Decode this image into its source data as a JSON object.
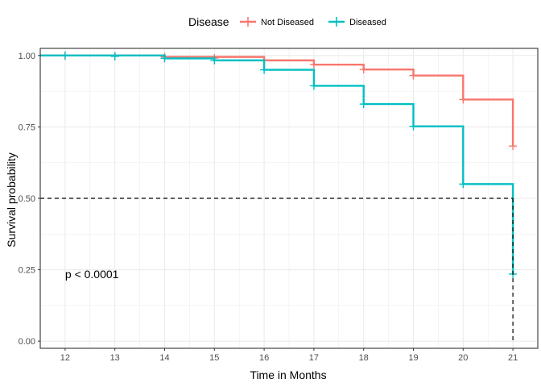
{
  "chart_data": {
    "type": "line",
    "subtype": "kaplan-meier step",
    "xlabel": "Time in Months",
    "ylabel": "Survival probability",
    "xlim": [
      11.5,
      21.5
    ],
    "ylim": [
      -0.025,
      1.025
    ],
    "xticks": [
      12,
      13,
      14,
      15,
      16,
      17,
      18,
      19,
      20,
      21
    ],
    "yticks": [
      0.0,
      0.25,
      0.5,
      0.75,
      1.0
    ],
    "ytick_labels": [
      "0.00",
      "0.25",
      "0.50",
      "0.75",
      "1.00"
    ],
    "grid": true,
    "legend": {
      "title": "Disease",
      "position": "top",
      "entries": [
        "Not Diseased",
        "Diseased"
      ]
    },
    "annotation": "p < 0.0001",
    "median_line": {
      "y": 0.5,
      "x_end": 21,
      "style": "dashed",
      "color": "#000000"
    },
    "series": [
      {
        "name": "Not Diseased",
        "color": "#F8766D",
        "steps": [
          [
            11.5,
            1.0
          ],
          [
            14,
            0.995
          ],
          [
            16,
            0.983
          ],
          [
            17,
            0.968
          ],
          [
            18,
            0.951
          ],
          [
            19,
            0.93
          ],
          [
            20,
            0.846
          ],
          [
            21,
            0.683
          ]
        ],
        "censor": [
          [
            12,
            0.999
          ],
          [
            13,
            0.998
          ],
          [
            14,
            0.995
          ],
          [
            15,
            0.991
          ],
          [
            17,
            0.968
          ],
          [
            18,
            0.951
          ],
          [
            19,
            0.93
          ],
          [
            20,
            0.846
          ],
          [
            21,
            0.683
          ]
        ]
      },
      {
        "name": "Diseased",
        "color": "#00BFC4",
        "steps": [
          [
            11.5,
            1.0
          ],
          [
            14,
            0.99
          ],
          [
            15,
            0.983
          ],
          [
            16,
            0.95
          ],
          [
            17,
            0.894
          ],
          [
            18,
            0.83
          ],
          [
            19,
            0.752
          ],
          [
            20,
            0.55
          ],
          [
            21,
            0.235
          ]
        ],
        "censor": [
          [
            12,
            1.0
          ],
          [
            13,
            0.997
          ],
          [
            14,
            0.99
          ],
          [
            15,
            0.983
          ],
          [
            16,
            0.95
          ],
          [
            17,
            0.894
          ],
          [
            18,
            0.83
          ],
          [
            19,
            0.752
          ],
          [
            20,
            0.55
          ],
          [
            21,
            0.235
          ]
        ]
      }
    ]
  }
}
